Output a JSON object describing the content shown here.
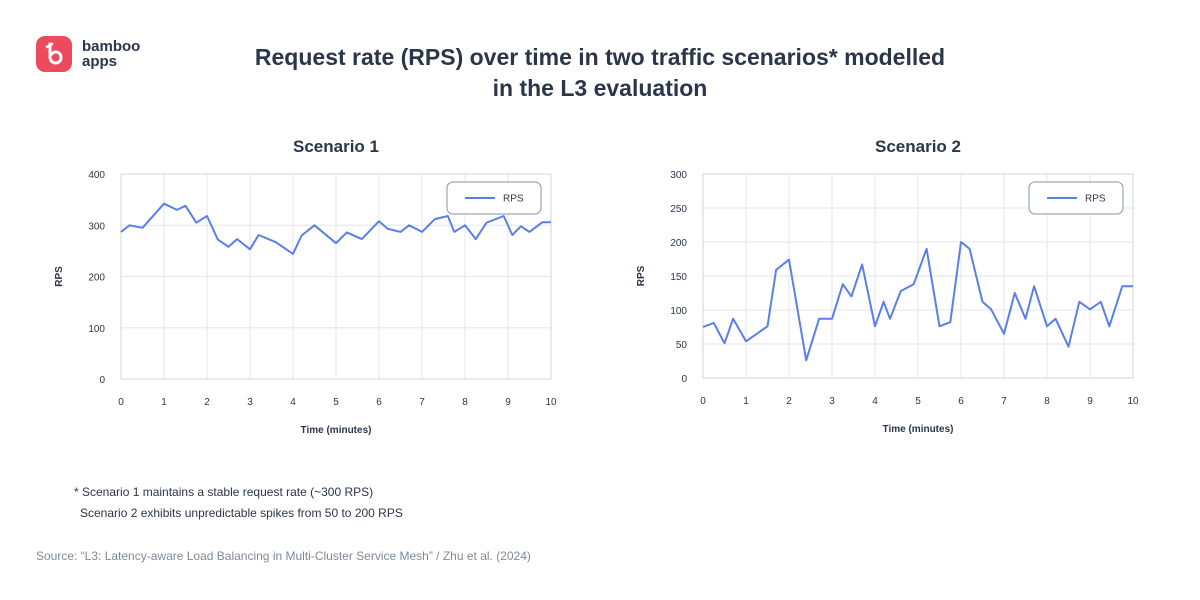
{
  "brand": {
    "line1": "bamboo",
    "line2": "apps",
    "color": "#ec4a5d"
  },
  "title": {
    "line1": "Request rate (RPS) over time in two traffic scenarios* modelled",
    "line2": "in the L3 evaluation"
  },
  "colors": {
    "line": "#5b7fe8",
    "grid": "#e3e6ea",
    "axis": "#d0d4da",
    "text": "#2b3648"
  },
  "chart_data": [
    {
      "type": "line",
      "title": "Scenario 1",
      "xlabel": "Time (minutes)",
      "ylabel": "RPS",
      "xlim": [
        0,
        10
      ],
      "ylim": [
        0,
        400
      ],
      "xticks": [
        0,
        1,
        2,
        3,
        4,
        5,
        6,
        7,
        8,
        9,
        10
      ],
      "yticks": [
        0,
        100,
        200,
        300,
        400
      ],
      "legend": "top-right",
      "series": [
        {
          "name": "RPS",
          "x": [
            0,
            0.2,
            0.5,
            1,
            1.3,
            1.5,
            1.75,
            2,
            2.25,
            2.5,
            2.7,
            3,
            3.2,
            3.6,
            4,
            4.2,
            4.5,
            5,
            5.25,
            5.6,
            6,
            6.2,
            6.5,
            6.7,
            7,
            7.3,
            7.6,
            7.75,
            8,
            8.25,
            8.5,
            8.9,
            9.1,
            9.3,
            9.5,
            9.8,
            10
          ],
          "values": [
            287,
            300,
            295,
            342,
            330,
            338,
            305,
            318,
            272,
            258,
            273,
            253,
            281,
            267,
            244,
            280,
            300,
            265,
            286,
            273,
            308,
            293,
            287,
            300,
            287,
            312,
            318,
            287,
            300,
            273,
            305,
            318,
            281,
            298,
            287,
            306,
            306
          ]
        }
      ]
    },
    {
      "type": "line",
      "title": "Scenario 2",
      "xlabel": "Time (minutes)",
      "ylabel": "RPS",
      "xlim": [
        0,
        10
      ],
      "ylim": [
        0,
        300
      ],
      "xticks": [
        0,
        1,
        2,
        3,
        4,
        5,
        6,
        7,
        8,
        9,
        10
      ],
      "yticks": [
        0,
        50,
        100,
        150,
        200,
        250,
        300
      ],
      "legend": "top-right",
      "series": [
        {
          "name": "RPS",
          "x": [
            0,
            0.25,
            0.5,
            0.7,
            1,
            1.5,
            1.7,
            2,
            2.4,
            2.7,
            3,
            3.25,
            3.45,
            3.7,
            4,
            4.2,
            4.35,
            4.6,
            4.9,
            5.2,
            5.5,
            5.75,
            6,
            6.2,
            6.5,
            6.7,
            7,
            7.25,
            7.5,
            7.7,
            8,
            8.2,
            8.5,
            8.75,
            9,
            9.25,
            9.45,
            9.75,
            10
          ],
          "values": [
            75,
            81,
            51,
            87,
            54,
            76,
            159,
            174,
            26,
            87,
            87,
            138,
            120,
            167,
            76,
            112,
            87,
            128,
            138,
            190,
            76,
            82,
            200,
            190,
            112,
            101,
            65,
            125,
            87,
            135,
            76,
            87,
            46,
            112,
            101,
            112,
            76,
            135,
            135
          ]
        }
      ]
    }
  ],
  "footnote": {
    "line1": "* Scenario 1 maintains a stable request rate (~300 RPS)",
    "line2": "Scenario 2 exhibits unpredictable spikes from 50 to 200 RPS"
  },
  "source": "Source: “L3: Latency-aware Load Balancing in Multi-Cluster Service Mesh” / Zhu et al. (2024)"
}
